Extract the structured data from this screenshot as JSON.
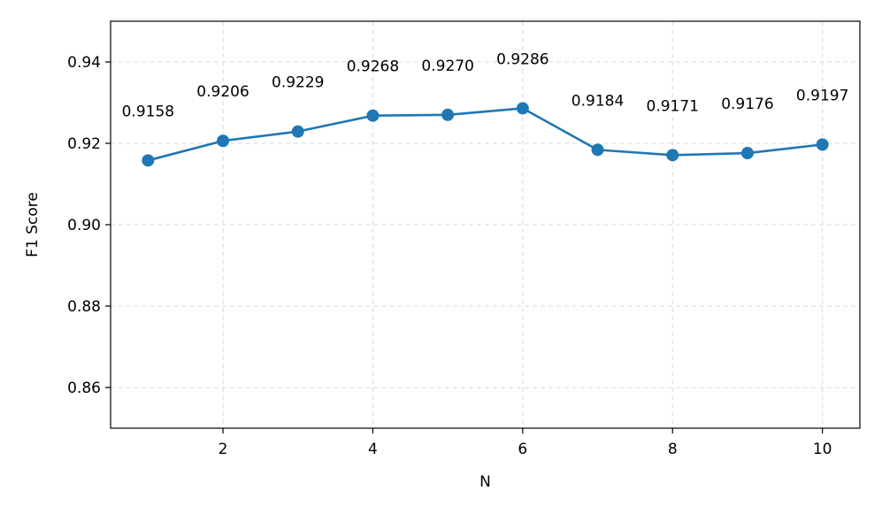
{
  "chart_data": {
    "type": "line",
    "title": "",
    "xlabel": "N",
    "ylabel": "F1 Score",
    "x": [
      1,
      2,
      3,
      4,
      5,
      6,
      7,
      8,
      9,
      10
    ],
    "series": [
      {
        "values": [
          0.9158,
          0.9206,
          0.9229,
          0.9268,
          0.927,
          0.9286,
          0.9184,
          0.9171,
          0.9176,
          0.9197
        ],
        "labels": [
          "0.9158",
          "0.9206",
          "0.9229",
          "0.9268",
          "0.9270",
          "0.9286",
          "0.9184",
          "0.9171",
          "0.9176",
          "0.9197"
        ],
        "color": "#1f77b4",
        "marker": "circle"
      }
    ],
    "xlim": [
      0.5,
      10.5
    ],
    "ylim": [
      0.85,
      0.95
    ],
    "xticks": [
      2,
      4,
      6,
      8,
      10
    ],
    "xtick_labels": [
      "2",
      "4",
      "6",
      "8",
      "10"
    ],
    "yticks": [
      0.86,
      0.88,
      0.9,
      0.92,
      0.94
    ],
    "ytick_labels": [
      "0.86",
      "0.88",
      "0.90",
      "0.92",
      "0.94"
    ],
    "grid": true,
    "grid_style": "dashed",
    "legend": false
  }
}
